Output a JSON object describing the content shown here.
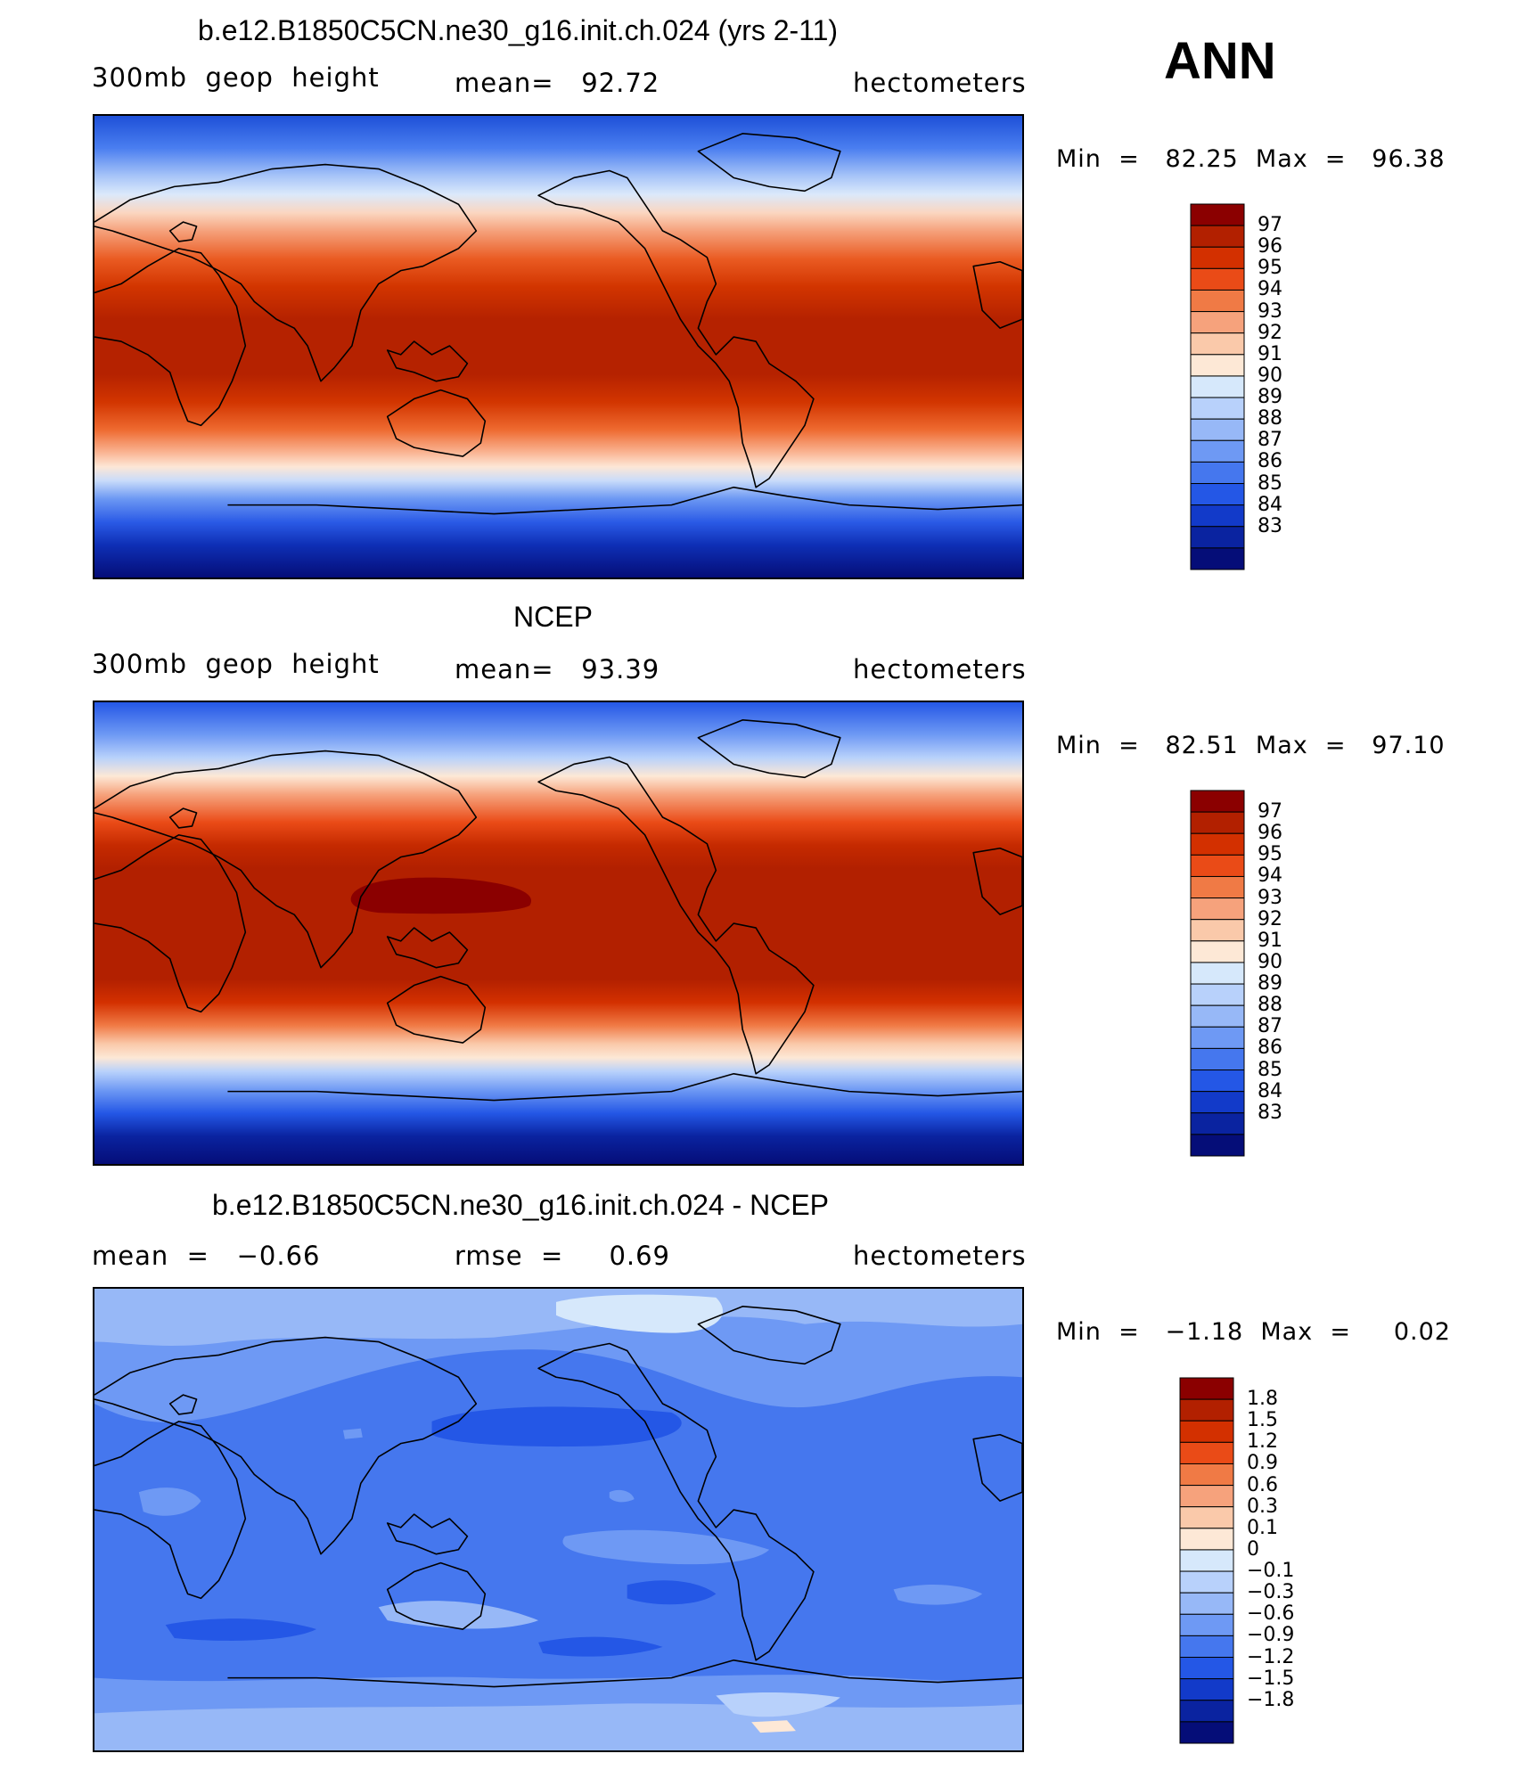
{
  "season": "ANN",
  "panels": [
    {
      "title": "b.e12.B1850C5CN.ne30_g16.init.ch.024 (yrs 2-11)",
      "left_label": "300mb  geop  height",
      "center_label": "mean=   92.72",
      "units": "hectometers",
      "minmax": "Min  =   82.25  Max  =   96.38",
      "colorbar_labels": [
        "97",
        "96",
        "95",
        "94",
        "93",
        "92",
        "91",
        "90",
        "89",
        "88",
        "87",
        "86",
        "85",
        "84",
        "83"
      ],
      "colors": [
        "#8b0000",
        "#b22000",
        "#d33000",
        "#ea4b17",
        "#f07a45",
        "#f6a27c",
        "#fac9aa",
        "#fde8d6",
        "#d6e8fb",
        "#b8d1fb",
        "#97b8f7",
        "#6e99f4",
        "#4577ee",
        "#2457e6",
        "#123ac9",
        "#0a23a0",
        "#050d78"
      ]
    },
    {
      "title": "NCEP",
      "left_label": "300mb  geop  height",
      "center_label": "mean=   93.39",
      "units": "hectometers",
      "minmax": "Min  =   82.51  Max  =   97.10",
      "colorbar_labels": [
        "97",
        "96",
        "95",
        "94",
        "93",
        "92",
        "91",
        "90",
        "89",
        "88",
        "87",
        "86",
        "85",
        "84",
        "83"
      ]
    },
    {
      "title": "b.e12.B1850C5CN.ne30_g16.init.ch.024 - NCEP",
      "left_label": "mean  =   −0.66",
      "center_label": "rmse  =     0.69",
      "units": "hectometers",
      "minmax": "Min  =   −1.18  Max  =     0.02",
      "colorbar_labels": [
        "1.8",
        "1.5",
        "1.2",
        "0.9",
        "0.6",
        "0.3",
        "0.1",
        "0",
        "−0.1",
        "−0.3",
        "−0.6",
        "−0.9",
        "−1.2",
        "−1.5",
        "−1.8"
      ]
    }
  ]
}
